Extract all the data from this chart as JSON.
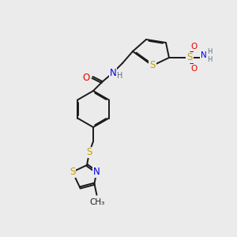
{
  "bg_color": "#ebebeb",
  "bond_color": "#1a1a1a",
  "atom_colors": {
    "S": "#c8a000",
    "N": "#0000ee",
    "O": "#ee0000",
    "H": "#607080",
    "C": "#1a1a1a"
  },
  "font_size": 7.5,
  "line_width": 1.4,
  "fig_w": 3.0,
  "fig_h": 3.0,
  "dpi": 100
}
